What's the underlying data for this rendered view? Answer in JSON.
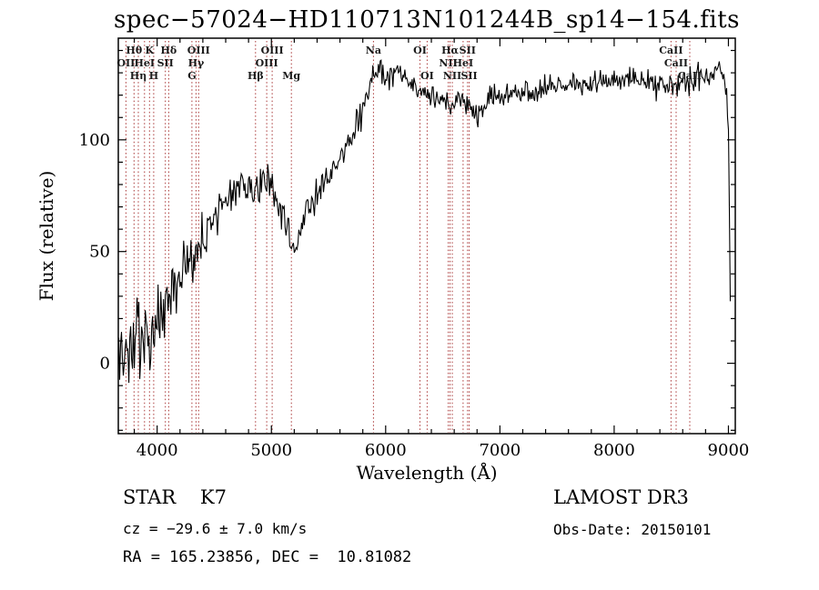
{
  "chart_data": {
    "type": "line",
    "title": "spec−57024−HD110713N101244B_sp14−154.fits",
    "xlabel": "Wavelength (Å)",
    "ylabel": "Flux (relative)",
    "xlim": [
      3660,
      9060
    ],
    "ylim": [
      -31.5,
      145.5
    ],
    "xticks": [
      4000,
      5000,
      6000,
      7000,
      8000,
      9000
    ],
    "yticks": [
      0,
      50,
      100
    ],
    "x_minor_step": 200,
    "y_minor_step": 10,
    "grid": false,
    "legend": false,
    "line_color": "#000000",
    "marker_color": "#aa3939",
    "label_color": "#1a1a1a",
    "noise_seed": 20150101,
    "sample_step": 8,
    "spectrum_end": 9020,
    "continuum_anchors": [
      [
        3665,
        6
      ],
      [
        3690,
        2
      ],
      [
        3715,
        10
      ],
      [
        3740,
        5
      ],
      [
        3765,
        13
      ],
      [
        3790,
        7
      ],
      [
        3815,
        11
      ],
      [
        3840,
        16
      ],
      [
        3870,
        11
      ],
      [
        3900,
        15
      ],
      [
        3930,
        13
      ],
      [
        3960,
        15
      ],
      [
        4000,
        20
      ],
      [
        4040,
        23
      ],
      [
        4080,
        26
      ],
      [
        4120,
        30
      ],
      [
        4160,
        34
      ],
      [
        4200,
        38
      ],
      [
        4250,
        42
      ],
      [
        4300,
        44
      ],
      [
        4350,
        50
      ],
      [
        4400,
        55
      ],
      [
        4450,
        60
      ],
      [
        4500,
        63
      ],
      [
        4550,
        67
      ],
      [
        4600,
        71
      ],
      [
        4650,
        75
      ],
      [
        4700,
        79
      ],
      [
        4750,
        82
      ],
      [
        4800,
        79
      ],
      [
        4850,
        75
      ],
      [
        4890,
        78
      ],
      [
        4930,
        80
      ],
      [
        4970,
        81
      ],
      [
        5010,
        78
      ],
      [
        5050,
        73
      ],
      [
        5090,
        68
      ],
      [
        5130,
        61
      ],
      [
        5170,
        53
      ],
      [
        5200,
        48
      ],
      [
        5230,
        56
      ],
      [
        5270,
        63
      ],
      [
        5310,
        68
      ],
      [
        5360,
        73
      ],
      [
        5410,
        77
      ],
      [
        5460,
        80
      ],
      [
        5510,
        83
      ],
      [
        5560,
        87
      ],
      [
        5610,
        92
      ],
      [
        5660,
        97
      ],
      [
        5710,
        103
      ],
      [
        5760,
        110
      ],
      [
        5810,
        117
      ],
      [
        5860,
        124
      ],
      [
        5910,
        130
      ],
      [
        5960,
        132
      ],
      [
        6010,
        129
      ],
      [
        6060,
        127
      ],
      [
        6110,
        128
      ],
      [
        6160,
        126
      ],
      [
        6210,
        124
      ],
      [
        6260,
        123
      ],
      [
        6310,
        121
      ],
      [
        6360,
        120
      ],
      [
        6410,
        119
      ],
      [
        6460,
        119
      ],
      [
        6510,
        118
      ],
      [
        6545,
        116
      ],
      [
        6565,
        112
      ],
      [
        6590,
        117
      ],
      [
        6650,
        119
      ],
      [
        6700,
        117
      ],
      [
        6750,
        115
      ],
      [
        6800,
        112
      ],
      [
        6850,
        114
      ],
      [
        6900,
        117
      ],
      [
        6950,
        119
      ],
      [
        7000,
        120
      ],
      [
        7100,
        122
      ],
      [
        7200,
        121
      ],
      [
        7300,
        122
      ],
      [
        7400,
        123
      ],
      [
        7500,
        124
      ],
      [
        7600,
        125
      ],
      [
        7700,
        125
      ],
      [
        7800,
        126
      ],
      [
        7900,
        126
      ],
      [
        8000,
        127
      ],
      [
        8100,
        127
      ],
      [
        8200,
        128
      ],
      [
        8300,
        126
      ],
      [
        8400,
        125
      ],
      [
        8500,
        125
      ],
      [
        8600,
        126
      ],
      [
        8700,
        128
      ],
      [
        8800,
        130
      ],
      [
        8860,
        132
      ],
      [
        8920,
        134
      ],
      [
        8960,
        128
      ],
      [
        8990,
        120
      ],
      [
        9005,
        90
      ],
      [
        9015,
        30
      ],
      [
        9020,
        0
      ]
    ],
    "noise_amplitude_anchors": [
      [
        3665,
        15
      ],
      [
        3750,
        14
      ],
      [
        3850,
        13
      ],
      [
        3950,
        12
      ],
      [
        4050,
        11
      ],
      [
        4150,
        10
      ],
      [
        4300,
        8.5
      ],
      [
        4500,
        7
      ],
      [
        4700,
        6
      ],
      [
        4900,
        5.5
      ],
      [
        5100,
        5
      ],
      [
        5300,
        5
      ],
      [
        5600,
        4.5
      ],
      [
        5900,
        5
      ],
      [
        6200,
        4
      ],
      [
        6500,
        4
      ],
      [
        6800,
        4
      ],
      [
        7200,
        3.5
      ],
      [
        7600,
        3.5
      ],
      [
        8000,
        3.5
      ],
      [
        8400,
        4
      ],
      [
        8700,
        4.5
      ],
      [
        9000,
        4
      ]
    ],
    "spectral_lines": [
      {
        "label": "Hθ",
        "wavelength": 3798,
        "row": 1
      },
      {
        "label": "K",
        "wavelength": 3933,
        "row": 1
      },
      {
        "label": "Hδ",
        "wavelength": 4101,
        "row": 1
      },
      {
        "label": "OIII",
        "wavelength": 4363,
        "row": 1
      },
      {
        "label": "OIII",
        "wavelength": 5007,
        "row": 1
      },
      {
        "label": "Na",
        "wavelength": 5893,
        "row": 1
      },
      {
        "label": "OI",
        "wavelength": 6300,
        "row": 1
      },
      {
        "label": "Hα",
        "wavelength": 6563,
        "row": 1
      },
      {
        "label": "SII",
        "wavelength": 6717,
        "row": 1
      },
      {
        "label": "CaII",
        "wavelength": 8498,
        "row": 1
      },
      {
        "label": "OII",
        "wavelength": 3727,
        "row": 2
      },
      {
        "label": "HeI",
        "wavelength": 3889,
        "row": 2
      },
      {
        "label": "SII",
        "wavelength": 4072,
        "row": 2
      },
      {
        "label": "Hγ",
        "wavelength": 4340,
        "row": 2
      },
      {
        "label": "OIII",
        "wavelength": 4959,
        "row": 2
      },
      {
        "label": "NII",
        "wavelength": 6548,
        "row": 2
      },
      {
        "label": "HeI",
        "wavelength": 6678,
        "row": 2
      },
      {
        "label": "CaII",
        "wavelength": 8542,
        "row": 2
      },
      {
        "label": "Hη",
        "wavelength": 3835,
        "row": 3
      },
      {
        "label": "H",
        "wavelength": 3970,
        "row": 3
      },
      {
        "label": "G",
        "wavelength": 4304,
        "row": 3
      },
      {
        "label": "Hβ",
        "wavelength": 4861,
        "row": 3
      },
      {
        "label": "Mg",
        "wavelength": 5175,
        "row": 3
      },
      {
        "label": "OI",
        "wavelength": 6363,
        "row": 3
      },
      {
        "label": "NII",
        "wavelength": 6583,
        "row": 3
      },
      {
        "label": "SII",
        "wavelength": 6731,
        "row": 3
      },
      {
        "label": "CaII",
        "wavelength": 8662,
        "row": 3
      }
    ]
  },
  "annotations": {
    "class_line": "STAR    K7",
    "survey": "LAMOST DR3",
    "cz_line": "cz = −29.6 ± 7.0 km/s",
    "obs_date": "Obs-Date: 20150101",
    "radec_line": "RA = 165.23856, DEC =  10.81082"
  }
}
